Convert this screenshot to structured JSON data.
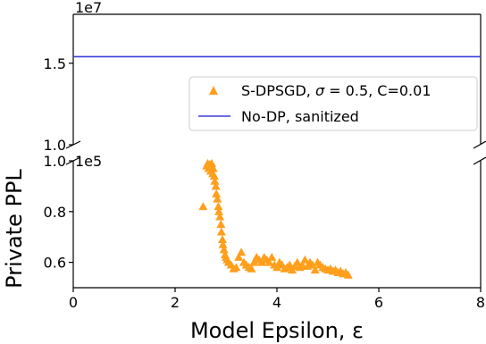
{
  "chart_data": {
    "type": "scatter",
    "xlabel": "Model Epsilon, ε",
    "ylabel": "Private PPL",
    "x_ticks": [
      "0",
      "2",
      "4",
      "6",
      "8"
    ],
    "xlim": [
      0,
      8
    ],
    "top_panel": {
      "ylim": [
        1.0,
        1.8
      ],
      "ticks": [
        1.0,
        1.5
      ],
      "tick_labels": [
        "1.0",
        "1.5"
      ],
      "offset_label": "1e7",
      "baseline_value": 1.54
    },
    "bottom_panel": {
      "ylim": [
        0.5,
        1.0
      ],
      "ticks": [
        0.6,
        0.8,
        1.0
      ],
      "tick_labels": [
        "0.6",
        "0.8",
        "1.0"
      ],
      "offset_label": "1e5"
    },
    "colors": {
      "scatter": "#FF9F1C",
      "baseline": "#3C3CDC"
    },
    "legend": {
      "placement": "right",
      "entries": [
        {
          "marker": "triangle",
          "label_prefix": "S-DPSGD, ",
          "label_sigma": "σ",
          "label_suffix": " = 0.5, C=0.01"
        },
        {
          "marker": "line",
          "label": "No-DP, sanitized"
        }
      ]
    },
    "series": [
      {
        "name": "S-DPSGD, σ = 0.5, C=0.01",
        "points": [
          [
            2.55,
            0.82
          ],
          [
            2.62,
            0.98
          ],
          [
            2.64,
            0.99
          ],
          [
            2.66,
            0.97
          ],
          [
            2.68,
            0.985
          ],
          [
            2.7,
            0.96
          ],
          [
            2.72,
            0.99
          ],
          [
            2.74,
            0.95
          ],
          [
            2.75,
            0.97
          ],
          [
            2.77,
            0.94
          ],
          [
            2.78,
            0.92
          ],
          [
            2.8,
            0.9
          ],
          [
            2.81,
            0.87
          ],
          [
            2.83,
            0.85
          ],
          [
            2.85,
            0.82
          ],
          [
            2.86,
            0.8
          ],
          [
            2.88,
            0.78
          ],
          [
            2.9,
            0.75
          ],
          [
            2.91,
            0.72
          ],
          [
            2.93,
            0.69
          ],
          [
            2.94,
            0.67
          ],
          [
            2.96,
            0.65
          ],
          [
            2.98,
            0.63
          ],
          [
            3.0,
            0.62
          ],
          [
            3.02,
            0.61
          ],
          [
            3.05,
            0.6
          ],
          [
            3.1,
            0.59
          ],
          [
            3.15,
            0.575
          ],
          [
            3.2,
            0.58
          ],
          [
            3.25,
            0.62
          ],
          [
            3.3,
            0.64
          ],
          [
            3.35,
            0.6
          ],
          [
            3.4,
            0.59
          ],
          [
            3.45,
            0.58
          ],
          [
            3.5,
            0.575
          ],
          [
            3.55,
            0.6
          ],
          [
            3.6,
            0.62
          ],
          [
            3.65,
            0.61
          ],
          [
            3.7,
            0.6
          ],
          [
            3.75,
            0.62
          ],
          [
            3.8,
            0.61
          ],
          [
            3.85,
            0.6
          ],
          [
            3.9,
            0.62
          ],
          [
            3.95,
            0.59
          ],
          [
            4.0,
            0.58
          ],
          [
            4.05,
            0.6
          ],
          [
            4.1,
            0.59
          ],
          [
            4.15,
            0.575
          ],
          [
            4.2,
            0.58
          ],
          [
            4.25,
            0.59
          ],
          [
            4.3,
            0.57
          ],
          [
            4.35,
            0.585
          ],
          [
            4.4,
            0.6
          ],
          [
            4.45,
            0.58
          ],
          [
            4.5,
            0.59
          ],
          [
            4.55,
            0.61
          ],
          [
            4.6,
            0.585
          ],
          [
            4.65,
            0.6
          ],
          [
            4.7,
            0.59
          ],
          [
            4.75,
            0.57
          ],
          [
            4.8,
            0.6
          ],
          [
            4.85,
            0.59
          ],
          [
            4.9,
            0.58
          ],
          [
            4.95,
            0.575
          ],
          [
            5.0,
            0.57
          ],
          [
            5.05,
            0.575
          ],
          [
            5.1,
            0.565
          ],
          [
            5.15,
            0.57
          ],
          [
            5.2,
            0.56
          ],
          [
            5.25,
            0.565
          ],
          [
            5.3,
            0.555
          ],
          [
            5.35,
            0.56
          ],
          [
            5.4,
            0.55
          ]
        ]
      }
    ]
  }
}
